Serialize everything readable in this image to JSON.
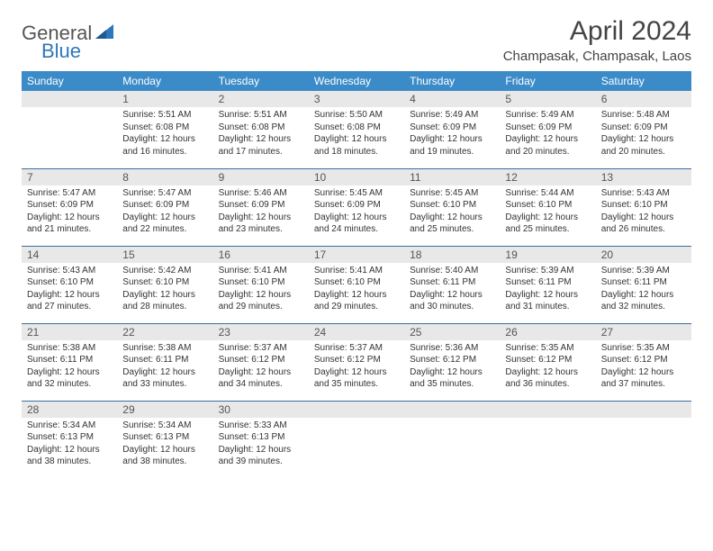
{
  "brand": {
    "part1": "General",
    "part2": "Blue",
    "accent_color": "#2f77bb"
  },
  "title": "April 2024",
  "location": "Champasak, Champasak, Laos",
  "header_bg": "#3b8bc8",
  "daynum_bg": "#e8e8e8",
  "row_border": "#3b6ea0",
  "weekdays": [
    "Sunday",
    "Monday",
    "Tuesday",
    "Wednesday",
    "Thursday",
    "Friday",
    "Saturday"
  ],
  "weeks": [
    [
      {
        "n": "",
        "lines": []
      },
      {
        "n": "1",
        "lines": [
          "Sunrise: 5:51 AM",
          "Sunset: 6:08 PM",
          "Daylight: 12 hours and 16 minutes."
        ]
      },
      {
        "n": "2",
        "lines": [
          "Sunrise: 5:51 AM",
          "Sunset: 6:08 PM",
          "Daylight: 12 hours and 17 minutes."
        ]
      },
      {
        "n": "3",
        "lines": [
          "Sunrise: 5:50 AM",
          "Sunset: 6:08 PM",
          "Daylight: 12 hours and 18 minutes."
        ]
      },
      {
        "n": "4",
        "lines": [
          "Sunrise: 5:49 AM",
          "Sunset: 6:09 PM",
          "Daylight: 12 hours and 19 minutes."
        ]
      },
      {
        "n": "5",
        "lines": [
          "Sunrise: 5:49 AM",
          "Sunset: 6:09 PM",
          "Daylight: 12 hours and 20 minutes."
        ]
      },
      {
        "n": "6",
        "lines": [
          "Sunrise: 5:48 AM",
          "Sunset: 6:09 PM",
          "Daylight: 12 hours and 20 minutes."
        ]
      }
    ],
    [
      {
        "n": "7",
        "lines": [
          "Sunrise: 5:47 AM",
          "Sunset: 6:09 PM",
          "Daylight: 12 hours and 21 minutes."
        ]
      },
      {
        "n": "8",
        "lines": [
          "Sunrise: 5:47 AM",
          "Sunset: 6:09 PM",
          "Daylight: 12 hours and 22 minutes."
        ]
      },
      {
        "n": "9",
        "lines": [
          "Sunrise: 5:46 AM",
          "Sunset: 6:09 PM",
          "Daylight: 12 hours and 23 minutes."
        ]
      },
      {
        "n": "10",
        "lines": [
          "Sunrise: 5:45 AM",
          "Sunset: 6:09 PM",
          "Daylight: 12 hours and 24 minutes."
        ]
      },
      {
        "n": "11",
        "lines": [
          "Sunrise: 5:45 AM",
          "Sunset: 6:10 PM",
          "Daylight: 12 hours and 25 minutes."
        ]
      },
      {
        "n": "12",
        "lines": [
          "Sunrise: 5:44 AM",
          "Sunset: 6:10 PM",
          "Daylight: 12 hours and 25 minutes."
        ]
      },
      {
        "n": "13",
        "lines": [
          "Sunrise: 5:43 AM",
          "Sunset: 6:10 PM",
          "Daylight: 12 hours and 26 minutes."
        ]
      }
    ],
    [
      {
        "n": "14",
        "lines": [
          "Sunrise: 5:43 AM",
          "Sunset: 6:10 PM",
          "Daylight: 12 hours and 27 minutes."
        ]
      },
      {
        "n": "15",
        "lines": [
          "Sunrise: 5:42 AM",
          "Sunset: 6:10 PM",
          "Daylight: 12 hours and 28 minutes."
        ]
      },
      {
        "n": "16",
        "lines": [
          "Sunrise: 5:41 AM",
          "Sunset: 6:10 PM",
          "Daylight: 12 hours and 29 minutes."
        ]
      },
      {
        "n": "17",
        "lines": [
          "Sunrise: 5:41 AM",
          "Sunset: 6:10 PM",
          "Daylight: 12 hours and 29 minutes."
        ]
      },
      {
        "n": "18",
        "lines": [
          "Sunrise: 5:40 AM",
          "Sunset: 6:11 PM",
          "Daylight: 12 hours and 30 minutes."
        ]
      },
      {
        "n": "19",
        "lines": [
          "Sunrise: 5:39 AM",
          "Sunset: 6:11 PM",
          "Daylight: 12 hours and 31 minutes."
        ]
      },
      {
        "n": "20",
        "lines": [
          "Sunrise: 5:39 AM",
          "Sunset: 6:11 PM",
          "Daylight: 12 hours and 32 minutes."
        ]
      }
    ],
    [
      {
        "n": "21",
        "lines": [
          "Sunrise: 5:38 AM",
          "Sunset: 6:11 PM",
          "Daylight: 12 hours and 32 minutes."
        ]
      },
      {
        "n": "22",
        "lines": [
          "Sunrise: 5:38 AM",
          "Sunset: 6:11 PM",
          "Daylight: 12 hours and 33 minutes."
        ]
      },
      {
        "n": "23",
        "lines": [
          "Sunrise: 5:37 AM",
          "Sunset: 6:12 PM",
          "Daylight: 12 hours and 34 minutes."
        ]
      },
      {
        "n": "24",
        "lines": [
          "Sunrise: 5:37 AM",
          "Sunset: 6:12 PM",
          "Daylight: 12 hours and 35 minutes."
        ]
      },
      {
        "n": "25",
        "lines": [
          "Sunrise: 5:36 AM",
          "Sunset: 6:12 PM",
          "Daylight: 12 hours and 35 minutes."
        ]
      },
      {
        "n": "26",
        "lines": [
          "Sunrise: 5:35 AM",
          "Sunset: 6:12 PM",
          "Daylight: 12 hours and 36 minutes."
        ]
      },
      {
        "n": "27",
        "lines": [
          "Sunrise: 5:35 AM",
          "Sunset: 6:12 PM",
          "Daylight: 12 hours and 37 minutes."
        ]
      }
    ],
    [
      {
        "n": "28",
        "lines": [
          "Sunrise: 5:34 AM",
          "Sunset: 6:13 PM",
          "Daylight: 12 hours and 38 minutes."
        ]
      },
      {
        "n": "29",
        "lines": [
          "Sunrise: 5:34 AM",
          "Sunset: 6:13 PM",
          "Daylight: 12 hours and 38 minutes."
        ]
      },
      {
        "n": "30",
        "lines": [
          "Sunrise: 5:33 AM",
          "Sunset: 6:13 PM",
          "Daylight: 12 hours and 39 minutes."
        ]
      },
      {
        "n": "",
        "lines": []
      },
      {
        "n": "",
        "lines": []
      },
      {
        "n": "",
        "lines": []
      },
      {
        "n": "",
        "lines": []
      }
    ]
  ]
}
